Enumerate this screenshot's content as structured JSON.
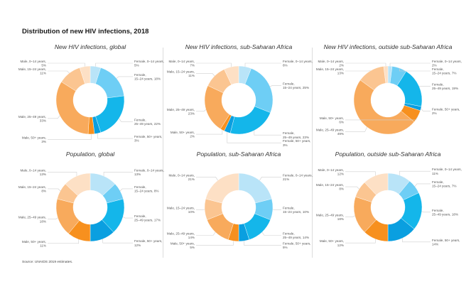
{
  "title": "Distribution of new HIV infections, 2018",
  "source": "Source: UNAIDS 2019 estimates.",
  "colors": {
    "female_0_14": "#b9e4f8",
    "female_15_24": "#6ecef5",
    "female_25_49": "#14b6ea",
    "female_50_plus": "#0a9fe0",
    "male_50_plus": "#f7901e",
    "male_25_49": "#f8aa5c",
    "male_15_24": "#fbc591",
    "male_0_14": "#fde0c5"
  },
  "chart_data": [
    {
      "type": "pie",
      "title": "New HIV infections, global",
      "categories": [
        "Female, 0–14 years",
        "Female, 15–24 years",
        "Female, 25–49 years",
        "Female, 50+ years",
        "Male, 50+ years",
        "Male, 25–49 years",
        "Male, 15–24 years",
        "Male, 0–14 years"
      ],
      "values": [
        5,
        18,
        22,
        3,
        3,
        33,
        11,
        5
      ],
      "labels": [
        "Female, 0–14 years,|5%",
        "Female,|15–24 years, 18%",
        "Female,|25–49 years, 22%",
        "Female, 50+ years,|3%",
        "Male, 50+ years,|3%",
        "Male, 25–49 years,|33%",
        "Male, 15–24 years,|11%",
        "Male, 0–14 years,|5%"
      ],
      "hole": true
    },
    {
      "type": "pie",
      "title": "New HIV infections, sub-Saharan Africa",
      "categories": [
        "Female, 0–14 years",
        "Female, 15–24 years",
        "Female, 25–49 years",
        "Female, 50+ years",
        "Male, 50+ years",
        "Male, 25–49 years",
        "Male, 15–24 years",
        "Male, 0–14 years"
      ],
      "values": [
        6,
        25,
        23,
        3,
        2,
        23,
        11,
        7
      ],
      "labels": [
        "Female, 0–14 years,|6%",
        "Female,|15–24 years, 25%",
        "Female,|25–49 years, 23%",
        "Female, 50+ years,|3%",
        "Male, 50+ years,|2%",
        "Male, 25–49 years,|23%",
        "Male, 15–24 years,|11%",
        "Male, 0–14 years,|7%"
      ],
      "hole": true
    },
    {
      "type": "pie",
      "title": "New HIV infections, outside sub-Saharan Africa",
      "categories": [
        "Female, 0–14 years",
        "Female, 15–24 years",
        "Female, 25–49 years",
        "Female, 50+ years",
        "Male, 50+ years",
        "Male, 25–49 years",
        "Male, 15–24 years",
        "Male, 0–14 years"
      ],
      "values": [
        2,
        7,
        19,
        2,
        6,
        49,
        13,
        2
      ],
      "labels": [
        "Female, 0–14 years,|2%",
        "Female,|15–24 years, 7%",
        "Female,|25–49 years, 19%",
        "Female, 50+ years,|2%",
        "Male, 50+ years,|6%",
        "Male, 25–49 years,|49%",
        "Male, 15–24 years,|13%",
        "Male, 0–14 years,|2%"
      ],
      "hole": true
    },
    {
      "type": "pie",
      "title": "Population, global",
      "categories": [
        "Female, 0–14 years",
        "Female, 15–24 years",
        "Female, 25–49 years",
        "Female, 50+ years",
        "Male, 50+ years",
        "Male, 25–49 years",
        "Male, 15–24 years",
        "Male, 0–14 years"
      ],
      "values": [
        13,
        8,
        17,
        12,
        11,
        18,
        8,
        13
      ],
      "labels": [
        "Female, 0–14 years,|13%",
        "Female,|15–24 years, 8%",
        "Female,|25–49 years, 17%",
        "Female, 50+ years,|12%",
        "Male, 50+ years,|11%",
        "Male, 25–49 years,|18%",
        "Male, 15–24 years,|8%",
        "Male, 0–14 years,|13%"
      ],
      "hole": true
    },
    {
      "type": "pie",
      "title": "Population, sub-Saharan Africa",
      "categories": [
        "Female, 0–14 years",
        "Female, 15–24 years",
        "Female, 25–49 years",
        "Female, 50+ years",
        "Male, 50+ years",
        "Male, 25–49 years",
        "Male, 15–24 years",
        "Male, 0–14 years"
      ],
      "values": [
        21,
        10,
        14,
        5,
        5,
        14,
        10,
        21
      ],
      "labels": [
        "Female, 0–14 years,|21%",
        "Female,|15–24 years, 10%",
        "Female,|25–49 years, 14%",
        "Female, 50+ years,|5%",
        "Male, 50+ years,|5%",
        "Male, 25–49 years,|14%",
        "Male, 15–24 years,|10%",
        "Male, 0–14 years,|21%"
      ],
      "hole": true
    },
    {
      "type": "pie",
      "title": "Population, outside sub-Saharan Africa",
      "categories": [
        "Female, 0–14 years",
        "Female, 15–24 years",
        "Female, 25–49 years",
        "Female, 50+ years",
        "Male, 50+ years",
        "Male, 25–49 years",
        "Male, 15–24 years",
        "Male, 0–14 years"
      ],
      "values": [
        11,
        7,
        18,
        14,
        12,
        18,
        8,
        12
      ],
      "labels": [
        "Female, 0–14 years,|11%",
        "Female,|15–24 years, 7%",
        "Female,|25–49 years, 18%",
        "Female, 50+ years,|14%",
        "Male, 50+ years,|12%",
        "Male, 25–49 years,|18%",
        "Male, 15–24 years,|8%",
        "Male, 0–14 years,|12%"
      ],
      "hole": true
    }
  ]
}
